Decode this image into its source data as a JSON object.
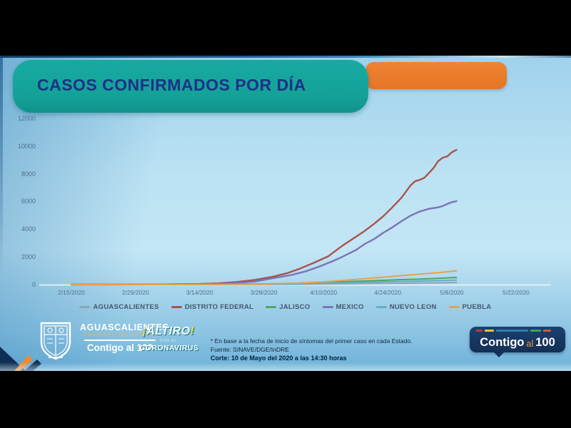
{
  "header": {
    "title": "CASOS CONFIRMADOS POR DÍA"
  },
  "chart_data": {
    "type": "line",
    "title": "CASOS CONFIRMADOS POR DÍA",
    "xlabel": "",
    "ylabel": "",
    "ylim": [
      0,
      12000
    ],
    "grid": false,
    "legend_position": "bottom",
    "y_ticks": [
      {
        "label": "0",
        "value": 0
      },
      {
        "label": "2000",
        "value": 2000
      },
      {
        "label": "4000",
        "value": 4000
      },
      {
        "label": "6000",
        "value": 6000
      },
      {
        "label": "8000",
        "value": 8000
      },
      {
        "label": "10000",
        "value": 10000
      },
      {
        "label": "12000",
        "value": 12000
      }
    ],
    "x_ticks": [
      {
        "label": "2/15/2020",
        "day": 0
      },
      {
        "label": "2/29/2020",
        "day": 14
      },
      {
        "label": "3/14/2020",
        "day": 28
      },
      {
        "label": "3/28/2020",
        "day": 42
      },
      {
        "label": "4/10/2020",
        "day": 55
      },
      {
        "label": "4/24/2020",
        "day": 69
      },
      {
        "label": "5/8/2020",
        "day": 83
      },
      {
        "label": "5/22/2020",
        "day": 97
      }
    ],
    "series": [
      {
        "name": "AGUASCALIENTES",
        "color": "#90a3b7",
        "width": 2,
        "points": [
          [
            0,
            0
          ],
          [
            28,
            0
          ],
          [
            42,
            10
          ],
          [
            50,
            25
          ],
          [
            56,
            45
          ],
          [
            62,
            65
          ],
          [
            68,
            85
          ],
          [
            72,
            100
          ],
          [
            76,
            115
          ],
          [
            80,
            130
          ],
          [
            84,
            150
          ]
        ]
      },
      {
        "name": "DISTRITO FEDERAL",
        "color": "#a9524d",
        "width": 2.4,
        "points": [
          [
            0,
            5
          ],
          [
            7,
            5
          ],
          [
            14,
            10
          ],
          [
            21,
            20
          ],
          [
            28,
            45
          ],
          [
            32,
            95
          ],
          [
            36,
            190
          ],
          [
            40,
            340
          ],
          [
            44,
            580
          ],
          [
            47,
            820
          ],
          [
            50,
            1180
          ],
          [
            53,
            1600
          ],
          [
            56,
            2050
          ],
          [
            59,
            2800
          ],
          [
            62,
            3450
          ],
          [
            64,
            3900
          ],
          [
            66,
            4400
          ],
          [
            68,
            4950
          ],
          [
            70,
            5600
          ],
          [
            72,
            6300
          ],
          [
            74,
            7200
          ],
          [
            75,
            7500
          ],
          [
            76,
            7600
          ],
          [
            77,
            7750
          ],
          [
            78,
            8100
          ],
          [
            79,
            8450
          ],
          [
            80,
            8950
          ],
          [
            81,
            9200
          ],
          [
            82,
            9300
          ],
          [
            83,
            9600
          ],
          [
            84,
            9770
          ]
        ]
      },
      {
        "name": "JALISCO",
        "color": "#4fa466",
        "width": 2,
        "points": [
          [
            0,
            0
          ],
          [
            28,
            10
          ],
          [
            42,
            50
          ],
          [
            50,
            110
          ],
          [
            56,
            170
          ],
          [
            62,
            240
          ],
          [
            68,
            310
          ],
          [
            72,
            360
          ],
          [
            76,
            400
          ],
          [
            80,
            450
          ],
          [
            84,
            520
          ]
        ]
      },
      {
        "name": "MEXICO",
        "color": "#7a73b7",
        "width": 2.4,
        "points": [
          [
            0,
            0
          ],
          [
            14,
            5
          ],
          [
            28,
            25
          ],
          [
            34,
            70
          ],
          [
            40,
            220
          ],
          [
            44,
            470
          ],
          [
            48,
            700
          ],
          [
            51,
            950
          ],
          [
            54,
            1300
          ],
          [
            57,
            1700
          ],
          [
            59,
            2000
          ],
          [
            62,
            2500
          ],
          [
            64,
            2950
          ],
          [
            66,
            3300
          ],
          [
            68,
            3750
          ],
          [
            70,
            4150
          ],
          [
            72,
            4600
          ],
          [
            74,
            5000
          ],
          [
            76,
            5300
          ],
          [
            78,
            5500
          ],
          [
            80,
            5600
          ],
          [
            81,
            5700
          ],
          [
            82,
            5850
          ],
          [
            83,
            5980
          ],
          [
            84,
            6050
          ]
        ]
      },
      {
        "name": "NUEVO LEON",
        "color": "#63afc4",
        "width": 2,
        "points": [
          [
            0,
            0
          ],
          [
            28,
            5
          ],
          [
            42,
            30
          ],
          [
            50,
            70
          ],
          [
            56,
            110
          ],
          [
            62,
            150
          ],
          [
            68,
            200
          ],
          [
            72,
            230
          ],
          [
            76,
            260
          ],
          [
            80,
            290
          ],
          [
            84,
            330
          ]
        ]
      },
      {
        "name": "PUEBLA",
        "color": "#e5a24d",
        "width": 2,
        "points": [
          [
            0,
            0
          ],
          [
            28,
            5
          ],
          [
            42,
            40
          ],
          [
            50,
            120
          ],
          [
            56,
            230
          ],
          [
            62,
            380
          ],
          [
            68,
            540
          ],
          [
            72,
            650
          ],
          [
            76,
            760
          ],
          [
            80,
            870
          ],
          [
            84,
            1000
          ]
        ]
      }
    ]
  },
  "footer": {
    "state_logo": {
      "line1": "AGUASCALIENTES",
      "line2": "GOBIERNO DEL ESTADO",
      "line3": "Contigo al 100"
    },
    "campaign_badge": {
      "accent_open": "¡",
      "line1": "ALTIRO",
      "accent_close": "!",
      "line2": "CON EL",
      "line3": "CORONAVIRUS"
    },
    "notes": {
      "line1": "* En base a la fecha de inicio de síntomas del primer caso en cada Estado.",
      "line2": "Fuente: SINAVE/DGE/InDRE",
      "line3": "Corte: 10 de Mayo del 2020 a las 14:30 horas"
    },
    "brand_bubble": {
      "word1": "Contigo",
      "word2": "al",
      "word3": "100"
    }
  },
  "colors": {
    "title_text": "#1d3186",
    "title_banner": "#14a198",
    "accent_orange": "#e8792b",
    "bubble_navy": "#142f55",
    "axis_label": "#4e6f8c"
  }
}
